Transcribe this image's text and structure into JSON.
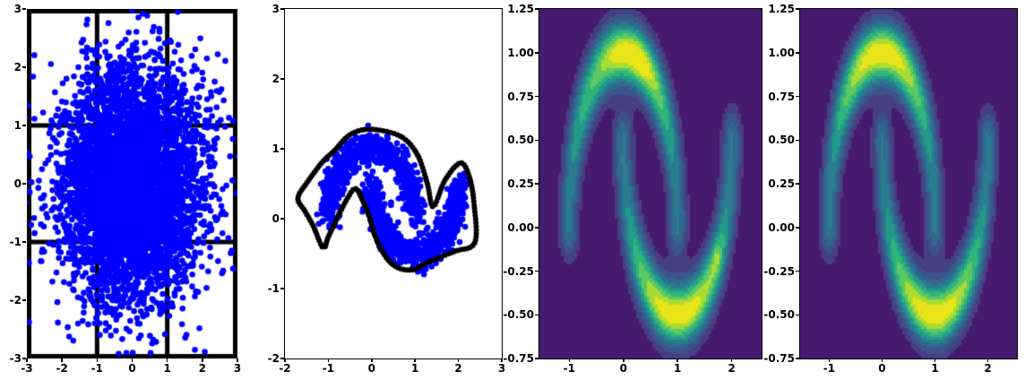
{
  "figure": {
    "background": "#ffffff"
  },
  "chart_data": [
    {
      "id": "base-gaussian-scatter",
      "type": "scatter",
      "title": "",
      "xlabel": "",
      "ylabel": "",
      "xlim": [
        -3,
        3
      ],
      "ylim": [
        -3,
        3
      ],
      "x_ticks": [
        {
          "v": -3,
          "label": "-3"
        },
        {
          "v": -2,
          "label": "-2"
        },
        {
          "v": -1,
          "label": "-1"
        },
        {
          "v": 0,
          "label": "0"
        },
        {
          "v": 1,
          "label": "1"
        },
        {
          "v": 2,
          "label": "2"
        },
        {
          "v": 3,
          "label": "3"
        }
      ],
      "y_ticks": [
        {
          "v": 3,
          "label": "3"
        },
        {
          "v": 2,
          "label": "2"
        },
        {
          "v": 1,
          "label": "1"
        },
        {
          "v": 0,
          "label": "0"
        },
        {
          "v": -1,
          "label": "-1"
        },
        {
          "v": -2,
          "label": "-2"
        },
        {
          "v": -3,
          "label": "-3"
        }
      ],
      "distribution": "standard-normal",
      "n": 4800,
      "std": 1.0,
      "seed": 7,
      "marker_color": "#0000ff",
      "marker_radius": 3.3,
      "grid_overlay": {
        "color": "#000000",
        "line_width": 5,
        "x_lines": [
          -1,
          1
        ],
        "y_lines": [
          -1,
          1
        ],
        "border": true
      }
    },
    {
      "id": "two-moons-scatter",
      "type": "scatter",
      "title": "",
      "xlabel": "",
      "ylabel": "",
      "xlim": [
        -2,
        3
      ],
      "ylim": [
        -2,
        3
      ],
      "x_ticks": [
        {
          "v": -2,
          "label": "-2"
        },
        {
          "v": -1,
          "label": "-1"
        },
        {
          "v": 0,
          "label": "0"
        },
        {
          "v": 1,
          "label": "1"
        },
        {
          "v": 2,
          "label": "2"
        },
        {
          "v": 3,
          "label": "3"
        }
      ],
      "y_ticks": [
        {
          "v": 3,
          "label": "3"
        },
        {
          "v": 2,
          "label": "2"
        },
        {
          "v": 1,
          "label": "1"
        },
        {
          "v": 0,
          "label": "0"
        },
        {
          "v": -1,
          "label": "-1"
        },
        {
          "v": -2,
          "label": "-2"
        }
      ],
      "dataset": "two-moons",
      "n": 1700,
      "noise": 0.11,
      "seed": 11,
      "marker_color": "#0000ff",
      "marker_radius": 3.3,
      "moons": {
        "upper": {
          "center": [
            0,
            0
          ],
          "radius": 1,
          "arc": "top"
        },
        "lower": {
          "center": [
            1,
            0.5
          ],
          "radius": 1,
          "arc": "bottom"
        }
      },
      "boundary": {
        "color": "#000000",
        "dot_radius": 3.0,
        "dot_spacing": 3.2,
        "points": [
          [
            -0.04,
            1.28
          ],
          [
            0.66,
            1.18
          ],
          [
            1.05,
            0.92
          ],
          [
            1.28,
            0.51
          ],
          [
            1.42,
            0.17
          ],
          [
            1.69,
            0.55
          ],
          [
            2.05,
            0.8
          ],
          [
            2.25,
            0.6
          ],
          [
            2.36,
            0.22
          ],
          [
            2.38,
            -0.34
          ],
          [
            1.9,
            -0.47
          ],
          [
            1.28,
            -0.63
          ],
          [
            0.95,
            -0.73
          ],
          [
            0.6,
            -0.7
          ],
          [
            0.33,
            -0.55
          ],
          [
            0.08,
            -0.25
          ],
          [
            -0.05,
            0.02
          ],
          [
            -0.2,
            0.25
          ],
          [
            -0.37,
            0.43
          ],
          [
            -0.55,
            0.3
          ],
          [
            -0.8,
            0.0
          ],
          [
            -1.0,
            -0.26
          ],
          [
            -1.12,
            -0.42
          ],
          [
            -1.35,
            -0.1
          ],
          [
            -1.55,
            0.12
          ],
          [
            -1.7,
            0.3
          ],
          [
            -1.45,
            0.55
          ],
          [
            -1.15,
            0.8
          ],
          [
            -0.85,
            0.98
          ],
          [
            -0.5,
            1.2
          ]
        ]
      }
    },
    {
      "id": "learned-density-contour",
      "type": "contour",
      "title": "",
      "xlabel": "",
      "ylabel": "",
      "xlim": [
        -1.55,
        2.55
      ],
      "ylim": [
        -0.75,
        1.25
      ],
      "x_ticks": [
        {
          "v": -1,
          "label": "-1"
        },
        {
          "v": 0,
          "label": "0"
        },
        {
          "v": 1,
          "label": "1"
        },
        {
          "v": 2,
          "label": "2"
        }
      ],
      "y_ticks": [
        {
          "v": 1.25,
          "label": "1.25"
        },
        {
          "v": 1.0,
          "label": "1.00"
        },
        {
          "v": 0.75,
          "label": "0.75"
        },
        {
          "v": 0.5,
          "label": "0.50"
        },
        {
          "v": 0.25,
          "label": "0.25"
        },
        {
          "v": 0.0,
          "label": "0.00"
        },
        {
          "v": -0.25,
          "label": "-0.25"
        },
        {
          "v": -0.5,
          "label": "-0.50"
        },
        {
          "v": -0.75,
          "label": "-0.75"
        }
      ],
      "dataset": "two-moons-density",
      "colormap": "viridis",
      "levels": 10,
      "palette": [
        "#461a6e",
        "#463f82",
        "#3d538b",
        "#31688e",
        "#2a7d8e",
        "#23998a",
        "#2fb47c",
        "#5ac864",
        "#a8db34",
        "#e8e419"
      ],
      "sigma": 0.125,
      "amp_base": 0.42,
      "amp_sin2": 0.58,
      "moons": {
        "upper": {
          "center": [
            0,
            0
          ],
          "radius": 1,
          "arc": "top"
        },
        "lower": {
          "center": [
            1,
            0.5
          ],
          "radius": 1,
          "arc": "bottom"
        }
      },
      "perturbations": [
        {
          "x": 0.35,
          "y": 0.93,
          "s": 0.18,
          "a": 0.1
        },
        {
          "x": 1.72,
          "y": -0.18,
          "s": 0.08,
          "a": 0.22
        },
        {
          "x": -0.5,
          "y": 0.85,
          "s": 0.25,
          "a": -0.12
        },
        {
          "x": 1.4,
          "y": 0.1,
          "s": 0.2,
          "a": 0.08
        }
      ]
    },
    {
      "id": "true-density-contour",
      "type": "contour",
      "title": "",
      "xlabel": "",
      "ylabel": "",
      "xlim": [
        -1.55,
        2.55
      ],
      "ylim": [
        -0.75,
        1.25
      ],
      "x_ticks": [
        {
          "v": -1,
          "label": "-1"
        },
        {
          "v": 0,
          "label": "0"
        },
        {
          "v": 1,
          "label": "1"
        },
        {
          "v": 2,
          "label": "2"
        }
      ],
      "y_ticks": [
        {
          "v": 1.25,
          "label": "1.25"
        },
        {
          "v": 1.0,
          "label": "1.00"
        },
        {
          "v": 0.75,
          "label": "0.75"
        },
        {
          "v": 0.5,
          "label": "0.50"
        },
        {
          "v": 0.25,
          "label": "0.25"
        },
        {
          "v": 0.0,
          "label": "0.00"
        },
        {
          "v": -0.25,
          "label": "-0.25"
        },
        {
          "v": -0.5,
          "label": "-0.50"
        },
        {
          "v": -0.75,
          "label": "-0.75"
        }
      ],
      "dataset": "two-moons-density",
      "colormap": "viridis",
      "levels": 10,
      "palette": [
        "#461a6e",
        "#463f82",
        "#3d538b",
        "#31688e",
        "#2a7d8e",
        "#23998a",
        "#2fb47c",
        "#5ac864",
        "#a8db34",
        "#e8e419"
      ],
      "sigma": 0.125,
      "amp_base": 0.42,
      "amp_sin2": 0.58,
      "moons": {
        "upper": {
          "center": [
            0,
            0
          ],
          "radius": 1,
          "arc": "top"
        },
        "lower": {
          "center": [
            1,
            0.5
          ],
          "radius": 1,
          "arc": "bottom"
        }
      },
      "perturbations": []
    }
  ]
}
